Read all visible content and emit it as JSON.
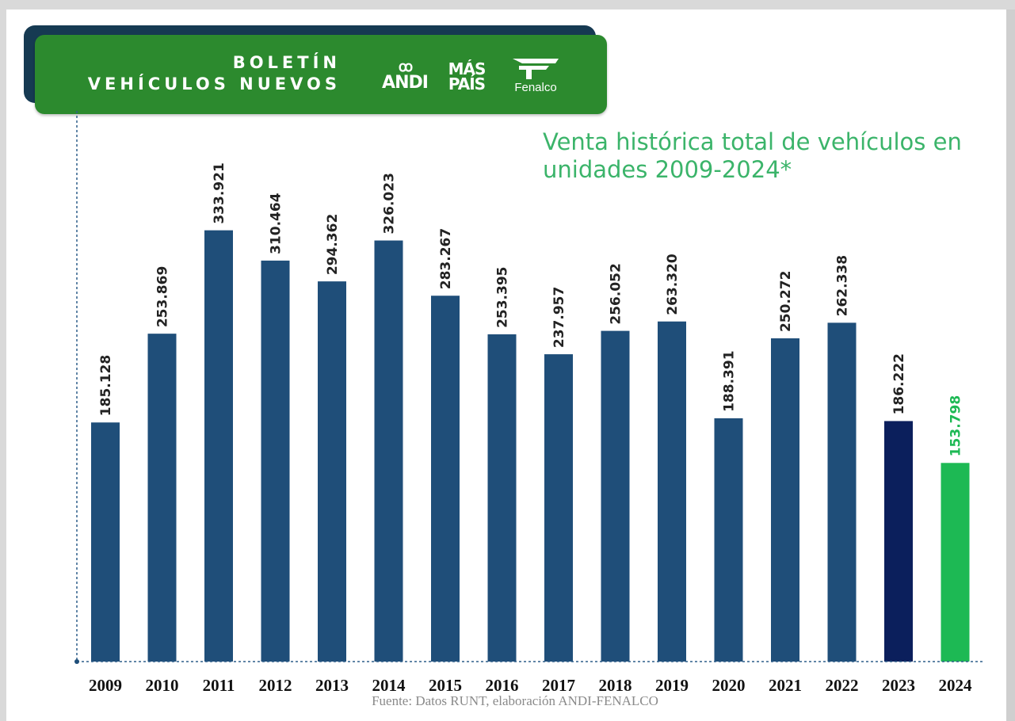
{
  "header": {
    "title_line1": "BOLETÍN",
    "title_line2": "VEHÍCULOS NUEVOS",
    "logos": {
      "andi_mark": "ꝏ",
      "andi_text": "ANDI",
      "mas_line1": "MÁS",
      "mas_line2": "PAÍS",
      "fenalco_icon": "fenalco-f-icon",
      "fenalco_text": "Fenalco"
    }
  },
  "chart_data": {
    "type": "bar",
    "title": "Venta histórica total de  vehículos en unidades 2009-2024*",
    "categories": [
      "2009",
      "2010",
      "2011",
      "2012",
      "2013",
      "2014",
      "2015",
      "2016",
      "2017",
      "2018",
      "2019",
      "2020",
      "2021",
      "2022",
      "2023",
      "2024"
    ],
    "values": [
      185128,
      253869,
      333921,
      310464,
      294362,
      326023,
      283267,
      253395,
      237957,
      256052,
      263320,
      188391,
      250272,
      262338,
      186222,
      153798
    ],
    "value_labels": [
      "185.128",
      "253.869",
      "333.921",
      "310.464",
      "294.362",
      "326.023",
      "283.267",
      "253.395",
      "237.957",
      "256.052",
      "263.320",
      "188.391",
      "250.272",
      "262.338",
      "186.222",
      "153.798"
    ],
    "ylim": [
      0,
      365000
    ],
    "bar_colors": [
      "#1f4e79",
      "#1f4e79",
      "#1f4e79",
      "#1f4e79",
      "#1f4e79",
      "#1f4e79",
      "#1f4e79",
      "#1f4e79",
      "#1f4e79",
      "#1f4e79",
      "#1f4e79",
      "#1f4e79",
      "#1f4e79",
      "#1f4e79",
      "#0b1f5c",
      "#1db954"
    ],
    "label_colors": [
      "#222222",
      "#222222",
      "#222222",
      "#222222",
      "#222222",
      "#222222",
      "#222222",
      "#222222",
      "#222222",
      "#222222",
      "#222222",
      "#222222",
      "#222222",
      "#222222",
      "#222222",
      "#1db954"
    ],
    "grid": false,
    "source": "Fuente: Datos RUNT, elaboración ANDI-FENALCO"
  }
}
